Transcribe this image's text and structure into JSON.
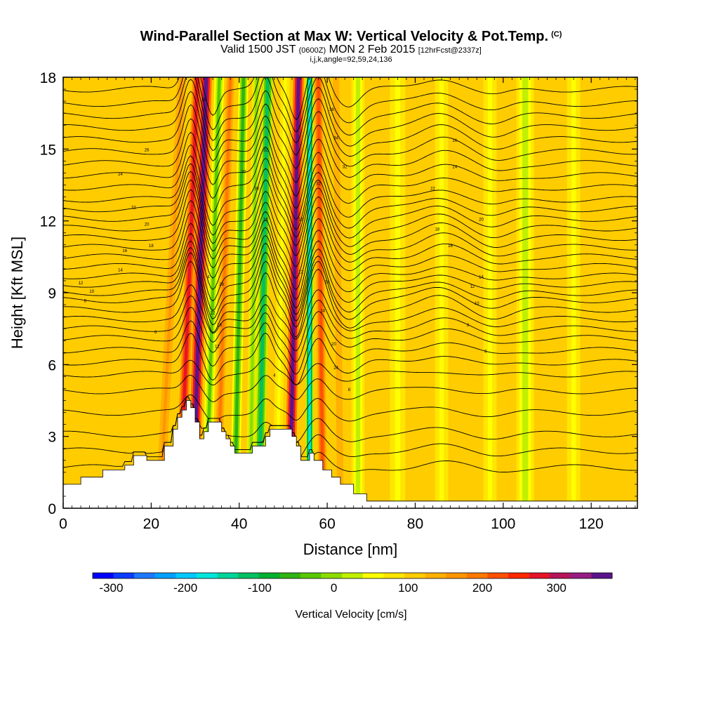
{
  "header": {
    "title": "Wind-Parallel Section at Max W: Vertical Velocity & Pot.Temp.",
    "copyright": "(C)",
    "valid_prefix": "Valid 1500 JST",
    "valid_utc": "(0600Z)",
    "valid_date": "MON 2 Feb 2015",
    "forecast": "[12hrFcst@2337z]",
    "indices": "i,j,k,angle=92,59,24,136"
  },
  "chart_data": {
    "type": "heatmap",
    "xlabel": "Distance [nm]",
    "ylabel": "Height [Kft MSL]",
    "xlim": [
      0,
      130.5
    ],
    "ylim": [
      0,
      18
    ],
    "x_ticks": [
      0,
      20,
      40,
      60,
      80,
      100,
      120
    ],
    "y_ticks": [
      0,
      3,
      6,
      9,
      12,
      15,
      18
    ],
    "colorbar": {
      "label": "Vertical Velocity [cm/s]",
      "range": [
        -325,
        375
      ],
      "tick_values": [
        -300,
        -200,
        -100,
        0,
        100,
        200,
        300
      ],
      "tick_labels": [
        "-300",
        "-200",
        "-100",
        "0",
        "100",
        "200",
        "300"
      ],
      "colors": [
        "#0000ff",
        "#0a3cff",
        "#1e78ff",
        "#00a0ff",
        "#00c8ff",
        "#00e6dc",
        "#00d49a",
        "#00c060",
        "#00b030",
        "#30b414",
        "#5ac800",
        "#8cdc00",
        "#c0f000",
        "#ffff00",
        "#ffe600",
        "#ffcc00",
        "#ffb000",
        "#ff9600",
        "#ff7800",
        "#ff5000",
        "#ff2800",
        "#e61428",
        "#b4145a",
        "#961e82",
        "#5a148c"
      ]
    },
    "velocity_field": {
      "background": 15,
      "bands": [
        {
          "x_bottom": 22,
          "x_top": 27,
          "width": 2.0,
          "value": 17
        },
        {
          "x_bottom": 26.5,
          "x_top": 30.5,
          "width": 2.2,
          "value": 21
        },
        {
          "x_bottom": 29.5,
          "x_top": 32.5,
          "width": 2.6,
          "value": 24
        },
        {
          "x_bottom": 32.5,
          "x_top": 35.5,
          "width": 2.2,
          "value": 10
        },
        {
          "x_bottom": 35,
          "x_top": 38,
          "width": 1.8,
          "value": 18
        },
        {
          "x_bottom": 39,
          "x_top": 41,
          "width": 2.2,
          "value": 9
        },
        {
          "x_bottom": 42.5,
          "x_top": 44,
          "width": 2.0,
          "value": 11
        },
        {
          "x_bottom": 44.5,
          "x_top": 46.5,
          "width": 2.4,
          "value": 7
        },
        {
          "x_bottom": 48.5,
          "x_top": 50.5,
          "width": 2.0,
          "value": 13
        },
        {
          "x_bottom": 51.5,
          "x_top": 53.5,
          "width": 2.4,
          "value": 24
        },
        {
          "x_bottom": 56,
          "x_top": 56,
          "width": 1.8,
          "value": 5
        },
        {
          "x_bottom": 59,
          "x_top": 58,
          "width": 2.0,
          "value": 19
        },
        {
          "x_bottom": 63,
          "x_top": 62,
          "width": 2.2,
          "value": 16
        },
        {
          "x_bottom": 67,
          "x_top": 67,
          "width": 3.0,
          "value": 12
        },
        {
          "x_bottom": 76,
          "x_top": 76,
          "width": 3.5,
          "value": 13
        },
        {
          "x_bottom": 86,
          "x_top": 86,
          "width": 3.0,
          "value": 13
        },
        {
          "x_bottom": 97,
          "x_top": 97,
          "width": 3.0,
          "value": 13
        },
        {
          "x_bottom": 105,
          "x_top": 105,
          "width": 4.0,
          "value": 12
        },
        {
          "x_bottom": 116,
          "x_top": 116,
          "width": 3.0,
          "value": 13
        }
      ]
    },
    "terrain_kft": [
      [
        0,
        1.0
      ],
      [
        4,
        1.0
      ],
      [
        4,
        1.3
      ],
      [
        9,
        1.3
      ],
      [
        9,
        1.6
      ],
      [
        14,
        1.6
      ],
      [
        14,
        1.8
      ],
      [
        16,
        1.8
      ],
      [
        16,
        2.2
      ],
      [
        19,
        2.2
      ],
      [
        19,
        2.0
      ],
      [
        23,
        2.0
      ],
      [
        23,
        2.6
      ],
      [
        25,
        2.6
      ],
      [
        25,
        3.3
      ],
      [
        26,
        3.3
      ],
      [
        26,
        3.8
      ],
      [
        27,
        3.8
      ],
      [
        27,
        4.1
      ],
      [
        28,
        4.1
      ],
      [
        28,
        4.5
      ],
      [
        29,
        4.5
      ],
      [
        29,
        4.2
      ],
      [
        30,
        4.2
      ],
      [
        30,
        3.6
      ],
      [
        31,
        3.6
      ],
      [
        31,
        2.9
      ],
      [
        32,
        2.9
      ],
      [
        32,
        3.2
      ],
      [
        33,
        3.2
      ],
      [
        33,
        3.6
      ],
      [
        36,
        3.6
      ],
      [
        36,
        3.2
      ],
      [
        37,
        3.2
      ],
      [
        37,
        2.9
      ],
      [
        38,
        2.9
      ],
      [
        38,
        2.6
      ],
      [
        39,
        2.6
      ],
      [
        39,
        2.3
      ],
      [
        43,
        2.3
      ],
      [
        43,
        2.6
      ],
      [
        46,
        2.6
      ],
      [
        46,
        3.0
      ],
      [
        47,
        3.0
      ],
      [
        47,
        3.3
      ],
      [
        52,
        3.3
      ],
      [
        52,
        3.0
      ],
      [
        53,
        3.0
      ],
      [
        53,
        2.6
      ],
      [
        54,
        2.6
      ],
      [
        54,
        2.0
      ],
      [
        56,
        2.0
      ],
      [
        56,
        2.3
      ],
      [
        57,
        2.3
      ],
      [
        57,
        2.0
      ],
      [
        59,
        2.0
      ],
      [
        59,
        1.6
      ],
      [
        61,
        1.6
      ],
      [
        61,
        1.3
      ],
      [
        63,
        1.3
      ],
      [
        63,
        1.0
      ],
      [
        66,
        1.0
      ],
      [
        66,
        0.6
      ],
      [
        69,
        0.6
      ],
      [
        69,
        0.3
      ],
      [
        130.5,
        0.3
      ]
    ],
    "theta_contours": {
      "levels_kft": [
        1.7,
        2.4,
        3.1,
        4.0,
        4.9,
        5.6,
        6.1,
        6.6,
        7.1,
        7.5,
        7.9,
        8.3,
        8.7,
        9.0,
        9.35,
        9.7,
        10.1,
        10.5,
        10.9,
        11.3,
        11.7,
        12.1,
        12.5,
        12.9,
        13.4,
        13.9,
        14.4,
        14.9,
        15.4,
        15.9,
        16.4,
        16.9,
        17.5
      ],
      "labels": [
        {
          "x": 5,
          "y": 8.6,
          "text": "8"
        },
        {
          "x": 6.5,
          "y": 9.0,
          "text": "10"
        },
        {
          "x": 4,
          "y": 9.35,
          "text": "12"
        },
        {
          "x": 13,
          "y": 9.9,
          "text": "14"
        },
        {
          "x": 14,
          "y": 10.7,
          "text": "16"
        },
        {
          "x": 20,
          "y": 10.9,
          "text": "18"
        },
        {
          "x": 19,
          "y": 11.8,
          "text": "20"
        },
        {
          "x": 16,
          "y": 12.5,
          "text": "22"
        },
        {
          "x": 13,
          "y": 13.9,
          "text": "24"
        },
        {
          "x": 19,
          "y": 14.9,
          "text": "26"
        },
        {
          "x": 32,
          "y": 17.0,
          "text": "28"
        },
        {
          "x": 33,
          "y": 9.6,
          "text": "4"
        },
        {
          "x": 34,
          "y": 8.1,
          "text": "22"
        },
        {
          "x": 36,
          "y": 9.3,
          "text": "28"
        },
        {
          "x": 35.5,
          "y": 7.6,
          "text": "18"
        },
        {
          "x": 35,
          "y": 6.7,
          "text": "12"
        },
        {
          "x": 41,
          "y": 14.0,
          "text": "30"
        },
        {
          "x": 44,
          "y": 13.3,
          "text": "30"
        },
        {
          "x": 46,
          "y": 14.9,
          "text": "32"
        },
        {
          "x": 46,
          "y": 12.0,
          "text": "16"
        },
        {
          "x": 48,
          "y": 5.5,
          "text": "4"
        },
        {
          "x": 54,
          "y": 12.0,
          "text": "16"
        },
        {
          "x": 54,
          "y": 9.8,
          "text": "12"
        },
        {
          "x": 58,
          "y": 13.5,
          "text": "32"
        },
        {
          "x": 60,
          "y": 9.4,
          "text": "14"
        },
        {
          "x": 59,
          "y": 8.2,
          "text": "14"
        },
        {
          "x": 61,
          "y": 16.6,
          "text": "38"
        },
        {
          "x": 62,
          "y": 15.4,
          "text": "34"
        },
        {
          "x": 64,
          "y": 14.2,
          "text": "32"
        },
        {
          "x": 61.5,
          "y": 6.8,
          "text": "20"
        },
        {
          "x": 62,
          "y": 5.8,
          "text": "24"
        },
        {
          "x": 65,
          "y": 4.9,
          "text": "8"
        },
        {
          "x": 89,
          "y": 15.3,
          "text": "26"
        },
        {
          "x": 89,
          "y": 14.2,
          "text": "24"
        },
        {
          "x": 84,
          "y": 13.3,
          "text": "22"
        },
        {
          "x": 85,
          "y": 11.6,
          "text": "18"
        },
        {
          "x": 88,
          "y": 10.9,
          "text": "16"
        },
        {
          "x": 95,
          "y": 12.0,
          "text": "20"
        },
        {
          "x": 95,
          "y": 9.6,
          "text": "14"
        },
        {
          "x": 93,
          "y": 9.2,
          "text": "12"
        },
        {
          "x": 94,
          "y": 8.5,
          "text": "10"
        },
        {
          "x": 92,
          "y": 7.6,
          "text": "8"
        },
        {
          "x": 96,
          "y": 6.5,
          "text": "6"
        },
        {
          "x": 21,
          "y": 7.3,
          "text": "6"
        }
      ]
    }
  },
  "colors": {
    "terrain_fill": "#ffffff",
    "contour_line": "#000000",
    "frame": "#000000"
  }
}
